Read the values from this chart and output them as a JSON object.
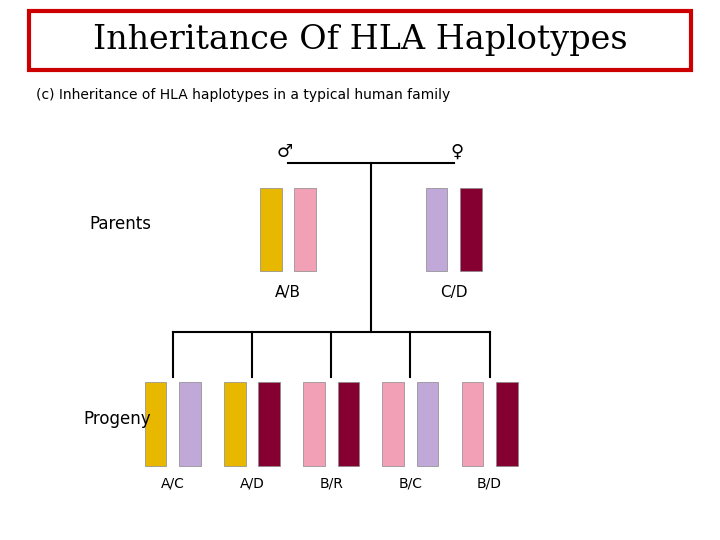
{
  "title": "Inheritance Of HLA Haplotypes",
  "subtitle": "(c) Inheritance of HLA haplotypes in a typical human family",
  "bg_color": "#ffffff",
  "title_box_color": "#cc0000",
  "colors": {
    "A": "#E8B800",
    "B": "#F2A0B5",
    "C": "#C0A8D8",
    "D": "#850030",
    "R": "#850030"
  },
  "parents_label": "Parents",
  "progeny_label": "Progeny",
  "parent_male_label": "A/B",
  "parent_female_label": "C/D",
  "parent_male_haplotypes": [
    "A",
    "B"
  ],
  "parent_female_haplotypes": [
    "C",
    "D"
  ],
  "progeny": [
    {
      "label": "A/C",
      "haplotypes": [
        "A",
        "C"
      ]
    },
    {
      "label": "A/D",
      "haplotypes": [
        "A",
        "D"
      ]
    },
    {
      "label": "B/R",
      "haplotypes": [
        "B",
        "R"
      ]
    },
    {
      "label": "B/C",
      "haplotypes": [
        "B",
        "C"
      ]
    },
    {
      "label": "B/D",
      "haplotypes": [
        "B",
        "D"
      ]
    }
  ],
  "bar_width": 0.03,
  "bar_height": 0.155,
  "bar_gap": 0.018,
  "title_fontsize": 24,
  "subtitle_fontsize": 10,
  "label_fontsize": 11,
  "symbol_fontsize": 13
}
